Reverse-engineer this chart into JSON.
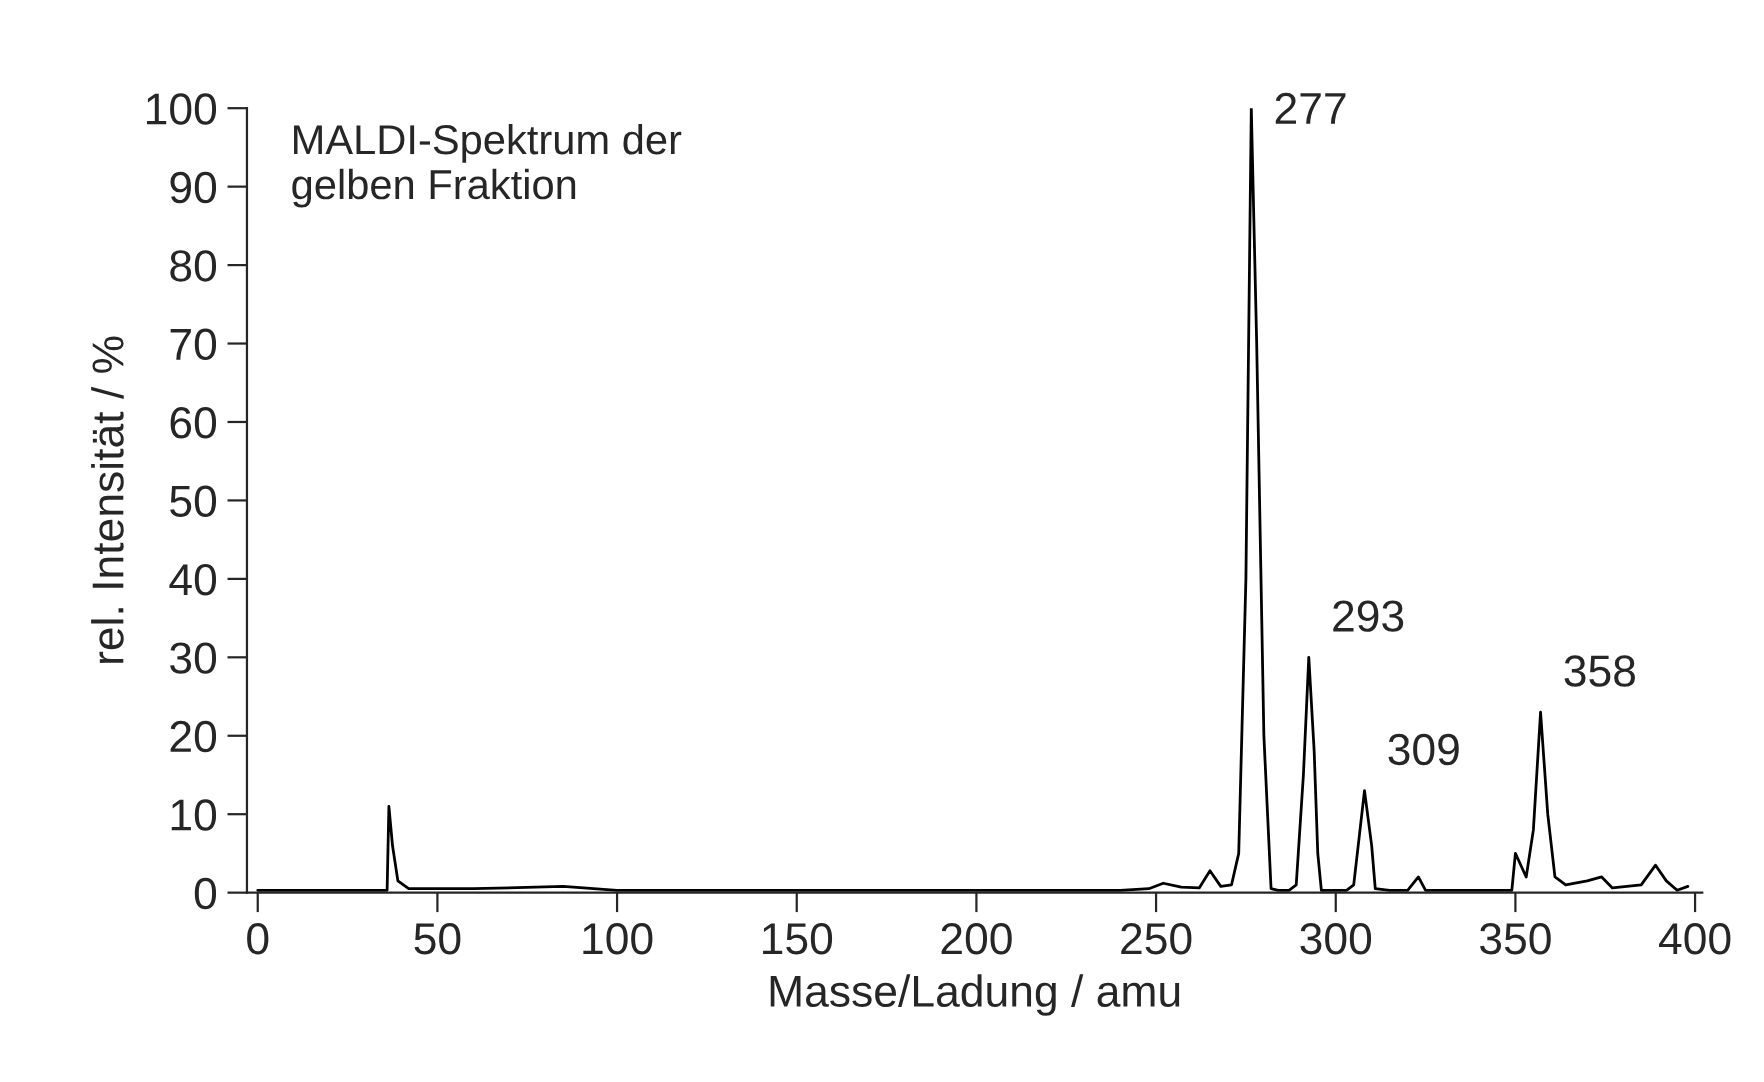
{
  "chart_data": {
    "type": "line",
    "title": "MALDI-Spektrum der\ngelben Fraktion",
    "xlabel": "Masse/Ladung / amu",
    "ylabel": "rel. Intensität / %",
    "xlim": [
      -3,
      402
    ],
    "xticks": [
      0,
      50,
      100,
      150,
      200,
      250,
      300,
      350,
      400
    ],
    "ylim": [
      0,
      100
    ],
    "yticks": [
      0,
      10,
      20,
      30,
      40,
      50,
      60,
      70,
      80,
      90,
      100
    ],
    "grid": false,
    "legend": false,
    "marker": "none",
    "line_style": "solid",
    "series": [
      {
        "color": "#000000",
        "x": [
          0,
          20,
          35,
          36,
          36.5,
          37.5,
          39,
          42,
          60,
          85,
          100,
          150,
          200,
          240,
          248,
          252,
          257,
          262,
          265,
          268,
          271,
          273,
          275,
          276.5,
          278,
          280,
          282,
          284,
          287,
          289,
          291,
          292.5,
          294,
          295,
          296,
          303,
          305,
          307,
          308,
          310,
          311,
          315,
          320,
          323,
          325,
          340,
          349,
          350,
          351,
          353,
          355,
          357,
          359,
          361,
          364,
          370,
          374,
          377,
          385,
          389,
          392,
          395,
          398
        ],
        "values": [
          0.3,
          0.3,
          0.3,
          0.3,
          11,
          6,
          1.5,
          0.5,
          0.5,
          0.8,
          0.3,
          0.3,
          0.3,
          0.3,
          0.5,
          1.2,
          0.7,
          0.6,
          2.8,
          0.8,
          1,
          5,
          40,
          100,
          70,
          20,
          0.5,
          0.3,
          0.3,
          1,
          15,
          30,
          18,
          5,
          0.3,
          0.3,
          1,
          9,
          13,
          6,
          0.5,
          0.3,
          0.3,
          2,
          0.3,
          0.3,
          0.3,
          5,
          4,
          2,
          8,
          23,
          10,
          2,
          1,
          1.5,
          2,
          0.6,
          1,
          3.5,
          1.5,
          0.3,
          0.8
        ]
      }
    ],
    "annotations": [
      {
        "text": "277",
        "x": 276.5,
        "y": 100
      },
      {
        "text": "293",
        "x": 292.5,
        "y": 30
      },
      {
        "text": "309",
        "x": 308,
        "y": 13
      },
      {
        "text": "358",
        "x": 357,
        "y": 23
      }
    ]
  }
}
